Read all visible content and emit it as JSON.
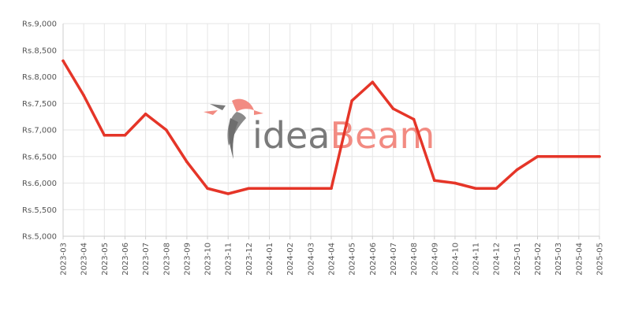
{
  "watermark": {
    "part1": "idea",
    "part2": "Beam",
    "color1": "#7a7a7a",
    "color2": "#f28b82"
  },
  "colors": {
    "line": "#e53528",
    "grid": "#e6e6e6",
    "axis": "#cccccc",
    "tick_text": "#555555"
  },
  "chart_data": {
    "type": "line",
    "title": "",
    "xlabel": "",
    "ylabel": "",
    "ylim": [
      5000,
      9000
    ],
    "yticks": [
      5000,
      5500,
      6000,
      6500,
      7000,
      7500,
      8000,
      8500,
      9000
    ],
    "ytick_labels": [
      "Rs.5,000",
      "Rs.5,500",
      "Rs.6,000",
      "Rs.6,500",
      "Rs.7,000",
      "Rs.7,500",
      "Rs.8,000",
      "Rs.8,500",
      "Rs.9,000"
    ],
    "grid": true,
    "x": [
      "2023-03",
      "2023-04",
      "2023-05",
      "2023-06",
      "2023-07",
      "2023-08",
      "2023-09",
      "2023-10",
      "2023-11",
      "2023-12",
      "2024-01",
      "2024-02",
      "2024-03",
      "2024-04",
      "2024-05",
      "2024-06",
      "2024-07",
      "2024-08",
      "2024-09",
      "2024-10",
      "2024-11",
      "2024-12",
      "2025-01",
      "2025-02",
      "2025-03",
      "2025-04",
      "2025-05"
    ],
    "series": [
      {
        "values": [
          8300,
          7650,
          6900,
          6900,
          7300,
          7000,
          6400,
          5900,
          5800,
          5900,
          5900,
          5900,
          5900,
          5900,
          7550,
          7900,
          7400,
          7200,
          6050,
          6000,
          5900,
          5900,
          6250,
          6500,
          6500,
          6500,
          6500
        ]
      }
    ]
  }
}
